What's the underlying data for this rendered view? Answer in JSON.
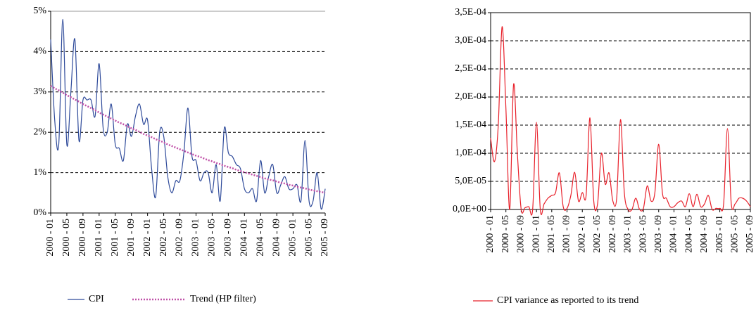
{
  "chart_data": [
    {
      "type": "line",
      "categories": [
        "2000 - 01",
        null,
        null,
        null,
        "2000 - 05",
        null,
        null,
        null,
        "2000 - 09",
        null,
        null,
        null,
        "2001 - 01",
        null,
        null,
        null,
        "2001 - 05",
        null,
        null,
        null,
        "2001 - 09",
        null,
        null,
        null,
        "2002 - 01",
        null,
        null,
        null,
        "2002 - 05",
        null,
        null,
        null,
        "2002 - 09",
        null,
        null,
        null,
        "2003 - 01",
        null,
        null,
        null,
        "2003 - 05",
        null,
        null,
        null,
        "2003 - 09",
        null,
        null,
        null,
        "2004 - 01",
        null,
        null,
        null,
        "2004 - 05",
        null,
        null,
        null,
        "2004 - 09",
        null,
        null,
        null,
        "2005 - 01",
        null,
        null,
        null,
        "2005 - 05",
        null,
        null,
        null,
        "2005 - 09"
      ],
      "series": [
        {
          "name": "CPI",
          "color": "#2e4a9a",
          "style": "solid",
          "values": [
            4.3,
            2.3,
            1.7,
            4.8,
            1.7,
            3.0,
            4.3,
            1.8,
            2.8,
            2.8,
            2.8,
            2.4,
            3.7,
            2.1,
            2.0,
            2.7,
            1.7,
            1.6,
            1.3,
            2.2,
            1.9,
            2.4,
            2.7,
            2.2,
            2.3,
            1.1,
            0.4,
            2.0,
            1.9,
            0.9,
            0.5,
            0.8,
            0.8,
            1.5,
            2.6,
            1.4,
            1.3,
            0.8,
            1.0,
            1.0,
            0.5,
            1.2,
            0.3,
            2.1,
            1.5,
            1.4,
            1.2,
            1.1,
            0.6,
            0.5,
            0.6,
            0.3,
            1.3,
            0.5,
            0.9,
            1.2,
            0.5,
            0.7,
            0.9,
            0.6,
            0.6,
            0.7,
            0.3,
            1.8,
            0.3,
            0.3,
            1.0,
            0.1,
            0.6
          ]
        },
        {
          "name": "Trend (HP filter)",
          "color": "#c050a8",
          "style": "dotted",
          "values": [
            3.15,
            3.09,
            3.04,
            2.98,
            2.92,
            2.87,
            2.81,
            2.76,
            2.7,
            2.65,
            2.6,
            2.55,
            2.49,
            2.44,
            2.39,
            2.34,
            2.29,
            2.24,
            2.2,
            2.15,
            2.1,
            2.06,
            2.01,
            1.96,
            1.92,
            1.88,
            1.83,
            1.79,
            1.75,
            1.7,
            1.66,
            1.62,
            1.58,
            1.54,
            1.5,
            1.46,
            1.42,
            1.39,
            1.35,
            1.31,
            1.28,
            1.24,
            1.21,
            1.17,
            1.14,
            1.11,
            1.07,
            1.04,
            1.01,
            0.98,
            0.95,
            0.92,
            0.89,
            0.86,
            0.83,
            0.81,
            0.78,
            0.75,
            0.73,
            0.7,
            0.68,
            0.65,
            0.63,
            0.61,
            0.58,
            0.56,
            0.54,
            0.52,
            0.5
          ]
        }
      ],
      "ylim": [
        0,
        5
      ],
      "yticks": [
        {
          "value": 0,
          "label": "0%"
        },
        {
          "value": 1,
          "label": "1%"
        },
        {
          "value": 2,
          "label": "2%"
        },
        {
          "value": 3,
          "label": "3%"
        },
        {
          "value": 4,
          "label": "4%"
        },
        {
          "value": 5,
          "label": "5%"
        }
      ],
      "grid": true,
      "legend": "bottom"
    },
    {
      "type": "line",
      "categories": [
        "2000 - 01",
        null,
        null,
        null,
        "2000 - 05",
        null,
        null,
        null,
        "2000 - 09",
        null,
        null,
        null,
        "2001 - 01",
        null,
        null,
        null,
        "2001 - 05",
        null,
        null,
        null,
        "2001 - 09",
        null,
        null,
        null,
        "2002 - 01",
        null,
        null,
        null,
        "2002 - 05",
        null,
        null,
        null,
        "2002 - 09",
        null,
        null,
        null,
        "2003 - 01",
        null,
        null,
        null,
        "2003 - 05",
        null,
        null,
        null,
        "2003 - 09",
        null,
        null,
        null,
        "2004 - 01",
        null,
        null,
        null,
        "2004 - 05",
        null,
        null,
        null,
        "2004 - 09",
        null,
        null,
        null,
        "2005 - 01",
        null,
        null,
        null,
        "2005 - 05",
        null,
        null,
        null,
        "2005 - 09"
      ],
      "series": [
        {
          "name": "CPI variance as reported to its trend",
          "color": "#e8202a",
          "style": "solid",
          "values": [
            0.000127,
            8.5e-05,
            0.00015,
            0.000325,
            0.00018,
            0,
            0.000222,
            0.0001,
            0,
            3e-06,
            5e-06,
            0,
            0.000155,
            0,
            1e-05,
            2e-05,
            2.5e-05,
            3e-05,
            6.5e-05,
            5e-06,
            2e-06,
            2.5e-05,
            6.6e-05,
            1.5e-05,
            3e-05,
            2.5e-05,
            0.000163,
            1.5e-05,
            1e-05,
            0.0001,
            4.5e-05,
            6.5e-05,
            1.5e-05,
            2e-05,
            0.00016,
            3e-05,
            0,
            0,
            2e-05,
            0,
            2e-06,
            4.2e-05,
            1.5e-05,
            3e-05,
            0.000116,
            2.8e-05,
            2e-05,
            5e-06,
            5e-06,
            1.2e-05,
            1.5e-05,
            5e-06,
            2.8e-05,
            5e-06,
            2.7e-05,
            5e-06,
            1e-05,
            2.5e-05,
            0,
            2e-06,
            2e-06,
            1e-05,
            0.000144,
            1e-05,
            1e-05,
            2e-05,
            2e-05,
            1.5e-05,
            5e-06
          ]
        }
      ],
      "ylim": [
        0,
        0.00035
      ],
      "yticks": [
        {
          "value": 0,
          "label": "0,0E+00"
        },
        {
          "value": 5e-05,
          "label": "5,0E-05"
        },
        {
          "value": 0.0001,
          "label": "1,0E-04"
        },
        {
          "value": 0.00015,
          "label": "1,5E-04"
        },
        {
          "value": 0.0002,
          "label": "2,0E-04"
        },
        {
          "value": 0.00025,
          "label": "2,5E-04"
        },
        {
          "value": 0.0003,
          "label": "3,0E-04"
        },
        {
          "value": 0.00035,
          "label": "3,5E-04"
        }
      ],
      "grid": true,
      "legend": "bottom"
    }
  ]
}
